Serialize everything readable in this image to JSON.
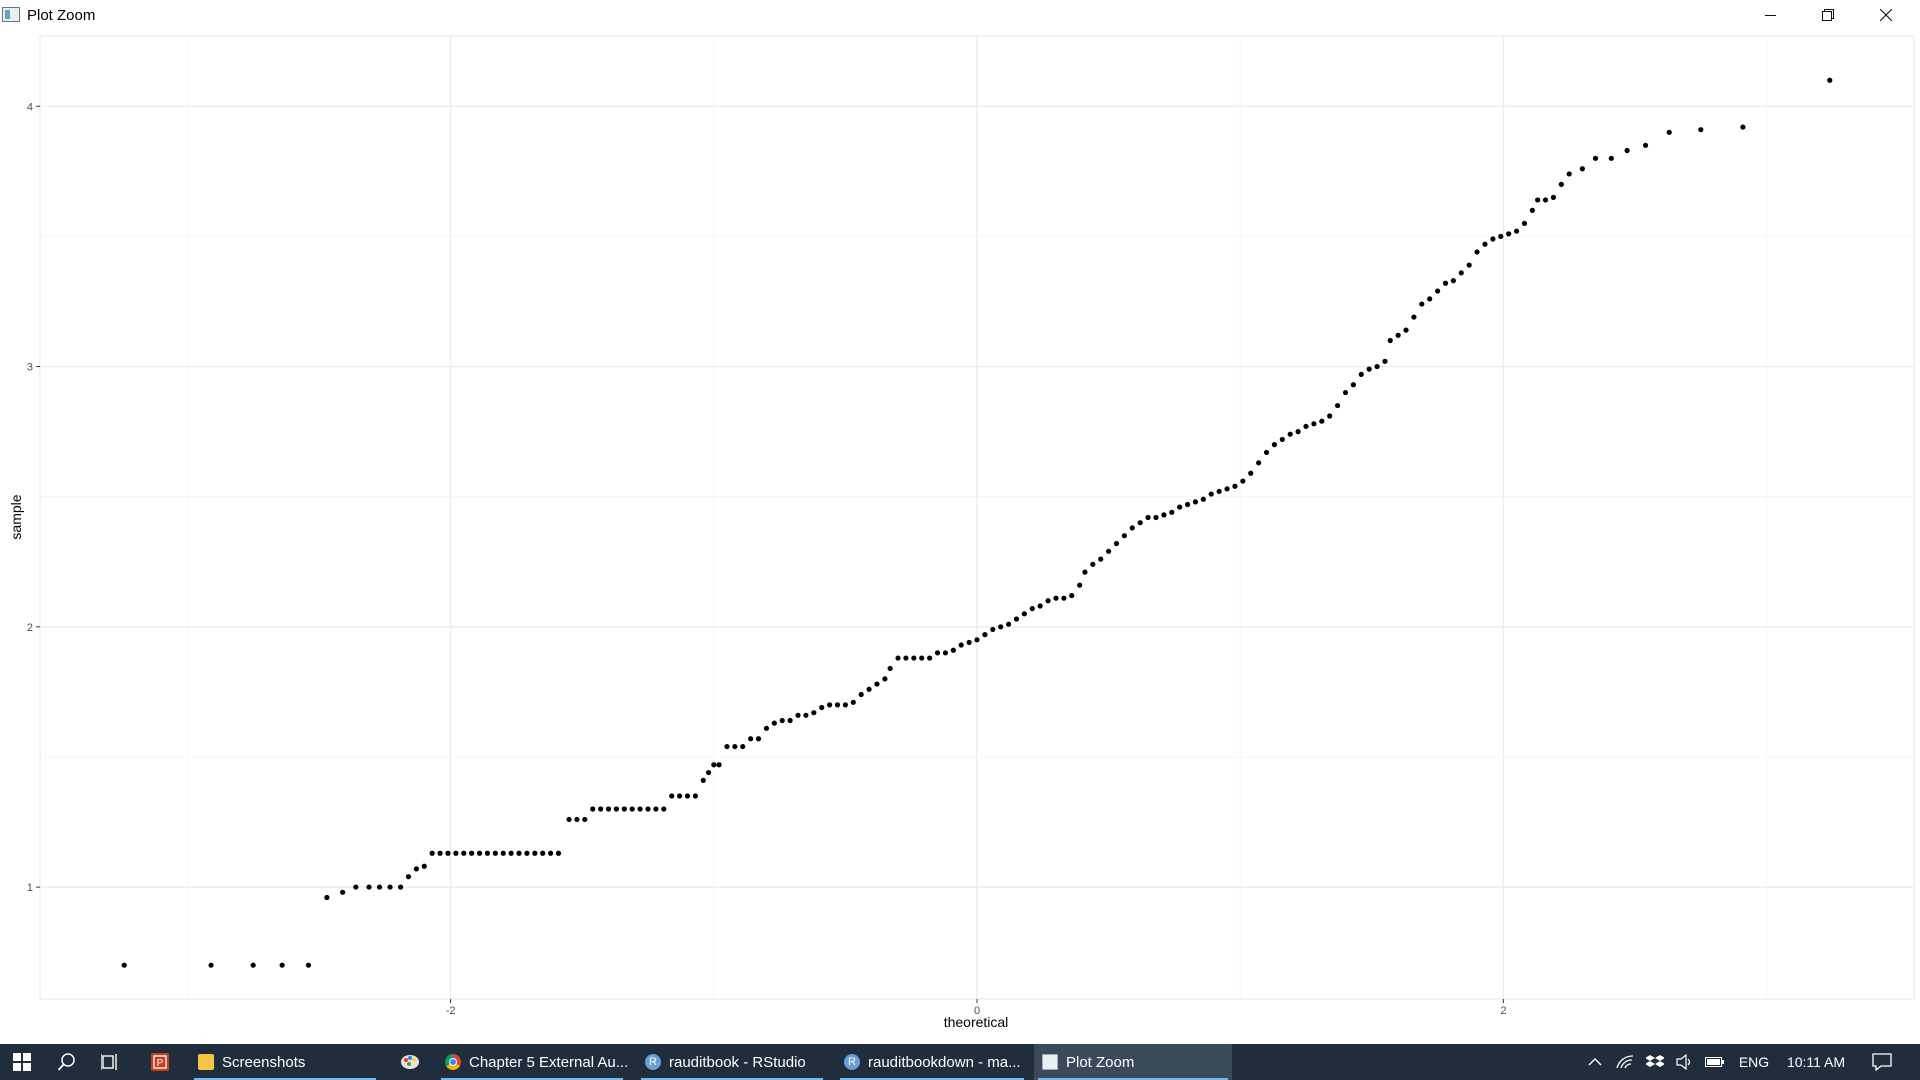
{
  "window": {
    "title": "Plot Zoom",
    "controls": {
      "minimize": "minimize",
      "restore": "restore",
      "close": "close"
    }
  },
  "chart_data": {
    "type": "scatter",
    "title": "",
    "xlabel": "theoretical",
    "ylabel": "sample",
    "xlim": [
      -3.56,
      3.56
    ],
    "ylim": [
      0.57,
      4.27
    ],
    "x_ticks": [
      -2,
      0,
      2
    ],
    "y_ticks": [
      1,
      2,
      3,
      4
    ],
    "grid": true,
    "point_color": "#000000",
    "points": [
      {
        "x": -3.24,
        "y": 0.7
      },
      {
        "x": -2.91,
        "y": 0.7
      },
      {
        "x": -2.75,
        "y": 0.7
      },
      {
        "x": -2.64,
        "y": 0.7
      },
      {
        "x": -2.54,
        "y": 0.7
      },
      {
        "x": -2.47,
        "y": 0.96
      },
      {
        "x": -2.41,
        "y": 0.98
      },
      {
        "x": -2.36,
        "y": 1.0
      },
      {
        "x": -2.31,
        "y": 1.0
      },
      {
        "x": -2.27,
        "y": 1.0
      },
      {
        "x": -2.23,
        "y": 1.0
      },
      {
        "x": -2.19,
        "y": 1.0
      },
      {
        "x": -2.16,
        "y": 1.04
      },
      {
        "x": -2.13,
        "y": 1.07
      },
      {
        "x": -2.1,
        "y": 1.08
      },
      {
        "x": -2.07,
        "y": 1.13
      },
      {
        "x": -2.04,
        "y": 1.13
      },
      {
        "x": -2.01,
        "y": 1.13
      },
      {
        "x": -1.98,
        "y": 1.13
      },
      {
        "x": -1.95,
        "y": 1.13
      },
      {
        "x": -1.92,
        "y": 1.13
      },
      {
        "x": -1.89,
        "y": 1.13
      },
      {
        "x": -1.86,
        "y": 1.13
      },
      {
        "x": -1.83,
        "y": 1.13
      },
      {
        "x": -1.8,
        "y": 1.13
      },
      {
        "x": -1.77,
        "y": 1.13
      },
      {
        "x": -1.74,
        "y": 1.13
      },
      {
        "x": -1.71,
        "y": 1.13
      },
      {
        "x": -1.68,
        "y": 1.13
      },
      {
        "x": -1.65,
        "y": 1.13
      },
      {
        "x": -1.62,
        "y": 1.13
      },
      {
        "x": -1.59,
        "y": 1.13
      },
      {
        "x": -1.55,
        "y": 1.26
      },
      {
        "x": -1.52,
        "y": 1.26
      },
      {
        "x": -1.49,
        "y": 1.26
      },
      {
        "x": -1.46,
        "y": 1.3
      },
      {
        "x": -1.43,
        "y": 1.3
      },
      {
        "x": -1.4,
        "y": 1.3
      },
      {
        "x": -1.37,
        "y": 1.3
      },
      {
        "x": -1.34,
        "y": 1.3
      },
      {
        "x": -1.31,
        "y": 1.3
      },
      {
        "x": -1.28,
        "y": 1.3
      },
      {
        "x": -1.25,
        "y": 1.3
      },
      {
        "x": -1.22,
        "y": 1.3
      },
      {
        "x": -1.19,
        "y": 1.3
      },
      {
        "x": -1.16,
        "y": 1.35
      },
      {
        "x": -1.13,
        "y": 1.35
      },
      {
        "x": -1.1,
        "y": 1.35
      },
      {
        "x": -1.07,
        "y": 1.35
      },
      {
        "x": -1.04,
        "y": 1.41
      },
      {
        "x": -1.02,
        "y": 1.44
      },
      {
        "x": -1.0,
        "y": 1.47
      },
      {
        "x": -0.98,
        "y": 1.47
      },
      {
        "x": -0.95,
        "y": 1.54
      },
      {
        "x": -0.92,
        "y": 1.54
      },
      {
        "x": -0.89,
        "y": 1.54
      },
      {
        "x": -0.86,
        "y": 1.57
      },
      {
        "x": -0.83,
        "y": 1.57
      },
      {
        "x": -0.8,
        "y": 1.61
      },
      {
        "x": -0.77,
        "y": 1.63
      },
      {
        "x": -0.74,
        "y": 1.64
      },
      {
        "x": -0.71,
        "y": 1.64
      },
      {
        "x": -0.68,
        "y": 1.66
      },
      {
        "x": -0.65,
        "y": 1.66
      },
      {
        "x": -0.62,
        "y": 1.67
      },
      {
        "x": -0.59,
        "y": 1.69
      },
      {
        "x": -0.56,
        "y": 1.7
      },
      {
        "x": -0.53,
        "y": 1.7
      },
      {
        "x": -0.5,
        "y": 1.7
      },
      {
        "x": -0.47,
        "y": 1.71
      },
      {
        "x": -0.44,
        "y": 1.74
      },
      {
        "x": -0.41,
        "y": 1.76
      },
      {
        "x": -0.38,
        "y": 1.78
      },
      {
        "x": -0.35,
        "y": 1.8
      },
      {
        "x": -0.33,
        "y": 1.84
      },
      {
        "x": -0.3,
        "y": 1.88
      },
      {
        "x": -0.27,
        "y": 1.88
      },
      {
        "x": -0.24,
        "y": 1.88
      },
      {
        "x": -0.21,
        "y": 1.88
      },
      {
        "x": -0.18,
        "y": 1.88
      },
      {
        "x": -0.15,
        "y": 1.9
      },
      {
        "x": -0.12,
        "y": 1.9
      },
      {
        "x": -0.09,
        "y": 1.91
      },
      {
        "x": -0.06,
        "y": 1.93
      },
      {
        "x": -0.03,
        "y": 1.94
      },
      {
        "x": 0.0,
        "y": 1.95
      },
      {
        "x": 0.03,
        "y": 1.97
      },
      {
        "x": 0.06,
        "y": 1.99
      },
      {
        "x": 0.09,
        "y": 2.0
      },
      {
        "x": 0.12,
        "y": 2.01
      },
      {
        "x": 0.15,
        "y": 2.03
      },
      {
        "x": 0.18,
        "y": 2.05
      },
      {
        "x": 0.21,
        "y": 2.07
      },
      {
        "x": 0.24,
        "y": 2.08
      },
      {
        "x": 0.27,
        "y": 2.1
      },
      {
        "x": 0.3,
        "y": 2.11
      },
      {
        "x": 0.33,
        "y": 2.11
      },
      {
        "x": 0.36,
        "y": 2.12
      },
      {
        "x": 0.39,
        "y": 2.16
      },
      {
        "x": 0.41,
        "y": 2.21
      },
      {
        "x": 0.44,
        "y": 2.24
      },
      {
        "x": 0.47,
        "y": 2.26
      },
      {
        "x": 0.5,
        "y": 2.29
      },
      {
        "x": 0.53,
        "y": 2.32
      },
      {
        "x": 0.56,
        "y": 2.35
      },
      {
        "x": 0.59,
        "y": 2.38
      },
      {
        "x": 0.62,
        "y": 2.4
      },
      {
        "x": 0.65,
        "y": 2.42
      },
      {
        "x": 0.68,
        "y": 2.42
      },
      {
        "x": 0.71,
        "y": 2.43
      },
      {
        "x": 0.74,
        "y": 2.44
      },
      {
        "x": 0.77,
        "y": 2.46
      },
      {
        "x": 0.8,
        "y": 2.47
      },
      {
        "x": 0.83,
        "y": 2.48
      },
      {
        "x": 0.86,
        "y": 2.49
      },
      {
        "x": 0.89,
        "y": 2.51
      },
      {
        "x": 0.92,
        "y": 2.52
      },
      {
        "x": 0.95,
        "y": 2.53
      },
      {
        "x": 0.98,
        "y": 2.54
      },
      {
        "x": 1.01,
        "y": 2.56
      },
      {
        "x": 1.04,
        "y": 2.59
      },
      {
        "x": 1.07,
        "y": 2.63
      },
      {
        "x": 1.1,
        "y": 2.67
      },
      {
        "x": 1.13,
        "y": 2.7
      },
      {
        "x": 1.16,
        "y": 2.72
      },
      {
        "x": 1.19,
        "y": 2.74
      },
      {
        "x": 1.22,
        "y": 2.75
      },
      {
        "x": 1.25,
        "y": 2.77
      },
      {
        "x": 1.28,
        "y": 2.78
      },
      {
        "x": 1.31,
        "y": 2.79
      },
      {
        "x": 1.34,
        "y": 2.81
      },
      {
        "x": 1.37,
        "y": 2.85
      },
      {
        "x": 1.4,
        "y": 2.9
      },
      {
        "x": 1.43,
        "y": 2.93
      },
      {
        "x": 1.46,
        "y": 2.97
      },
      {
        "x": 1.49,
        "y": 2.99
      },
      {
        "x": 1.52,
        "y": 3.0
      },
      {
        "x": 1.55,
        "y": 3.02
      },
      {
        "x": 1.57,
        "y": 3.1
      },
      {
        "x": 1.6,
        "y": 3.12
      },
      {
        "x": 1.63,
        "y": 3.14
      },
      {
        "x": 1.66,
        "y": 3.19
      },
      {
        "x": 1.69,
        "y": 3.24
      },
      {
        "x": 1.72,
        "y": 3.26
      },
      {
        "x": 1.75,
        "y": 3.29
      },
      {
        "x": 1.78,
        "y": 3.32
      },
      {
        "x": 1.81,
        "y": 3.33
      },
      {
        "x": 1.84,
        "y": 3.36
      },
      {
        "x": 1.87,
        "y": 3.39
      },
      {
        "x": 1.9,
        "y": 3.44
      },
      {
        "x": 1.93,
        "y": 3.47
      },
      {
        "x": 1.96,
        "y": 3.49
      },
      {
        "x": 1.99,
        "y": 3.5
      },
      {
        "x": 2.02,
        "y": 3.51
      },
      {
        "x": 2.05,
        "y": 3.52
      },
      {
        "x": 2.08,
        "y": 3.55
      },
      {
        "x": 2.11,
        "y": 3.6
      },
      {
        "x": 2.13,
        "y": 3.64
      },
      {
        "x": 2.16,
        "y": 3.64
      },
      {
        "x": 2.19,
        "y": 3.65
      },
      {
        "x": 2.22,
        "y": 3.7
      },
      {
        "x": 2.25,
        "y": 3.74
      },
      {
        "x": 2.3,
        "y": 3.76
      },
      {
        "x": 2.35,
        "y": 3.8
      },
      {
        "x": 2.41,
        "y": 3.8
      },
      {
        "x": 2.47,
        "y": 3.83
      },
      {
        "x": 2.54,
        "y": 3.85
      },
      {
        "x": 2.63,
        "y": 3.9
      },
      {
        "x": 2.75,
        "y": 3.91
      },
      {
        "x": 2.91,
        "y": 3.92
      },
      {
        "x": 3.24,
        "y": 4.1
      }
    ]
  },
  "taskbar": {
    "pinned": [
      "start-icon",
      "search-icon",
      "task-view-icon",
      "powerpoint-icon"
    ],
    "apps": [
      {
        "name": "folder",
        "label": "Screenshots"
      },
      {
        "name": "paint",
        "label": ""
      },
      {
        "name": "chrome",
        "label": "Chapter 5 External Au..."
      },
      {
        "name": "rstudio",
        "label": "rauditbook - RStudio",
        "icon_text": "R"
      },
      {
        "name": "rstudio2",
        "label": "rauditbookdown - ma...",
        "icon_text": "R"
      },
      {
        "name": "plotzoom",
        "label": "Plot Zoom"
      }
    ],
    "tray": {
      "language": "ENG",
      "time": "10:11 AM"
    }
  }
}
